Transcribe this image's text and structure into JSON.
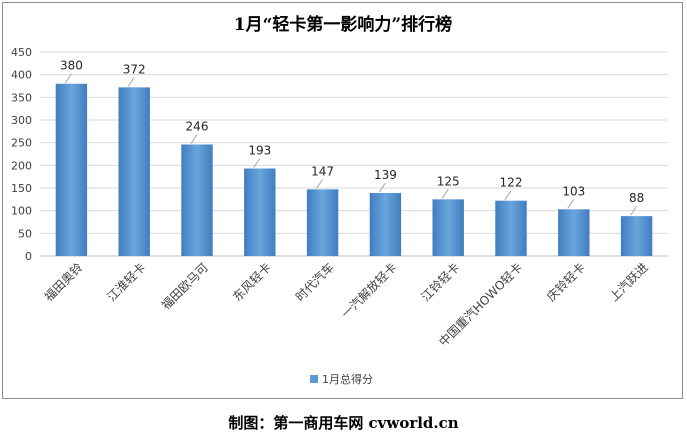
{
  "chart_data": {
    "type": "bar",
    "title": "1月“轻卡第一影响力”排行榜",
    "categories": [
      "福田奥铃",
      "江淮轻卡",
      "福田欧马可",
      "东风轻卡",
      "时代汽车",
      "一汽解放轻卡",
      "江铃轻卡",
      "中国重汽HOWO轻卡",
      "庆铃轻卡",
      "上汽跃进"
    ],
    "series": [
      {
        "name": "1月总得分",
        "values": [
          380,
          372,
          246,
          193,
          147,
          139,
          125,
          122,
          103,
          88
        ]
      }
    ],
    "ylim": [
      0,
      450
    ],
    "yticks": [
      0,
      50,
      100,
      150,
      200,
      250,
      300,
      350,
      400,
      450
    ],
    "grid": true,
    "legend": "bottom",
    "bar_color": "#5b9bd5"
  },
  "credit": "制图：第一商用车网 cvworld.cn"
}
